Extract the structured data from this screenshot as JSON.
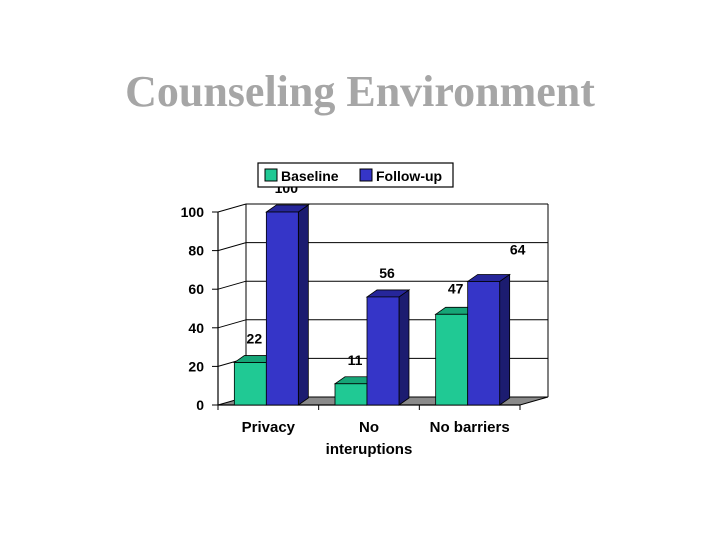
{
  "title": "Counseling Environment",
  "colors": {
    "baseline_front": "#20c994",
    "baseline_top": "#16a577",
    "baseline_side": "#0f7e5b",
    "followup_front": "#3535c8",
    "followup_top": "#26269a",
    "followup_side": "#1c1c70",
    "floor": "#8a8a8a",
    "grid": "#000000"
  },
  "chart_data": {
    "type": "bar",
    "style": "3d-clustered-column",
    "categories": [
      [
        "Privacy"
      ],
      [
        "No",
        "interuptions"
      ],
      [
        "No barriers"
      ]
    ],
    "series": [
      {
        "name": "Baseline",
        "values": [
          22,
          11,
          47
        ],
        "labels": [
          "22",
          "11",
          "47"
        ]
      },
      {
        "name": "Follow-up",
        "values": [
          100,
          56,
          64
        ],
        "labels": [
          "100",
          "56",
          "64"
        ]
      }
    ],
    "ylim": [
      0,
      100
    ],
    "yticks": [
      0,
      20,
      40,
      60,
      80,
      100
    ],
    "ytick_labels": [
      "0",
      "20",
      "40",
      "60",
      "80",
      "100"
    ],
    "grid": true,
    "legend_position": "top"
  }
}
